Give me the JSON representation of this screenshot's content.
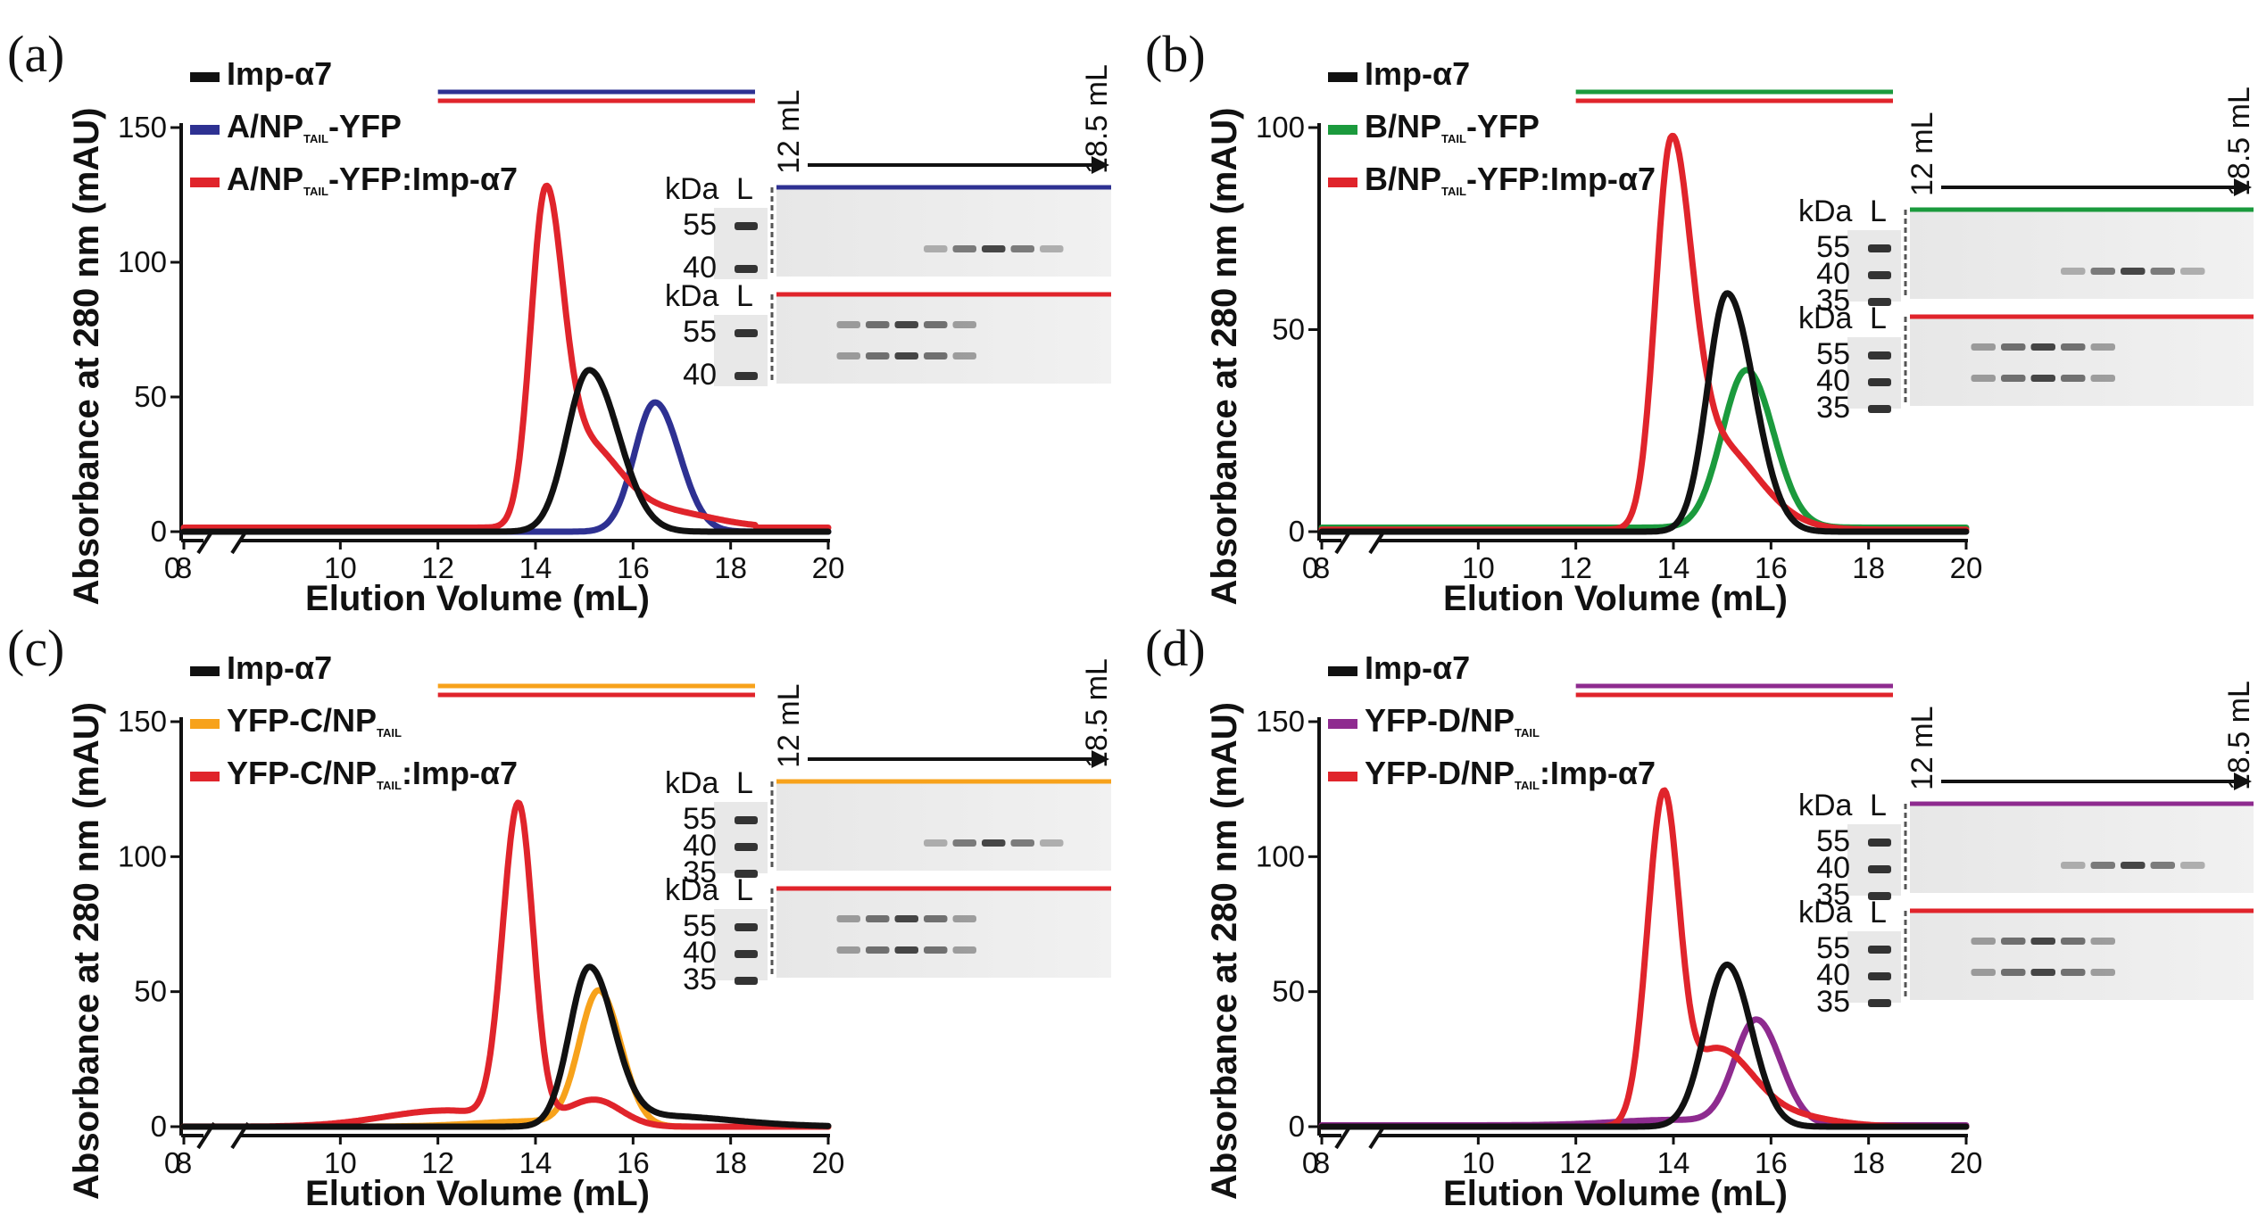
{
  "colors": {
    "imp": "#111111",
    "red": "#e0242b",
    "blue": "#2e3192",
    "green": "#1b9a3d",
    "orange": "#f7a21b",
    "purple": "#8e2b8f"
  },
  "gel_labels": {
    "kda": "kDa",
    "lane": "L",
    "start_vol": "12 mL",
    "end_vol": "18.5 mL"
  },
  "chart_data": [
    {
      "panel": "(a)",
      "type": "line",
      "xlabel": "Elution Volume (mL)",
      "ylabel": "Absorbance at 280 nm (mAU)",
      "xlim": [
        0,
        20
      ],
      "x_axis_break": [
        0,
        8
      ],
      "ylim": [
        0,
        150
      ],
      "x_ticks": [
        "0",
        "8",
        "10",
        "12",
        "14",
        "16",
        "18",
        "20"
      ],
      "y_ticks": [
        "0",
        "50",
        "100",
        "150"
      ],
      "fraction_range_ml": [
        12,
        18.5
      ],
      "legend": [
        {
          "label": "Imp-α7",
          "color_key": "imp"
        },
        {
          "label_pre": "A/NP",
          "label_sub": "TAIL",
          "label_post": "-YFP",
          "color_key": "blue"
        },
        {
          "label_pre": "A/NP",
          "label_sub": "TAIL",
          "label_post": "-YFP:Imp-α7",
          "color_key": "red"
        }
      ],
      "series": [
        {
          "name": "Imp-α7",
          "color_key": "imp",
          "peaks": [
            {
              "x": 15.1,
              "h": 60,
              "sl": 0.45,
              "sr": 0.6
            }
          ],
          "baseline": 0
        },
        {
          "name": "A/NP-TAIL-YFP",
          "color_key": "blue",
          "peaks": [
            {
              "x": 16.45,
              "h": 48,
              "sl": 0.42,
              "sr": 0.5
            }
          ],
          "baseline": 0
        },
        {
          "name": "A/NP-TAIL-YFP:Imp-α7",
          "color_key": "red",
          "peaks": [
            {
              "x": 14.2,
              "h": 118,
              "sl": 0.3,
              "sr": 0.35
            },
            {
              "x": 15.0,
              "h": 30,
              "sl": 0.5,
              "sr": 0.7
            },
            {
              "x": 16.6,
              "h": 6,
              "sl": 0.9,
              "sr": 1.0
            }
          ],
          "baseline": 1.5
        }
      ],
      "gels": [
        {
          "color_key": "blue",
          "markers": [
            "55",
            "40"
          ]
        },
        {
          "color_key": "red",
          "markers": [
            "55",
            "40"
          ]
        }
      ]
    },
    {
      "panel": "(b)",
      "type": "line",
      "xlabel": "Elution Volume (mL)",
      "ylabel": "Absorbance at 280 nm (mAU)",
      "xlim": [
        0,
        20
      ],
      "x_axis_break": [
        0,
        8
      ],
      "ylim": [
        0,
        100
      ],
      "x_ticks": [
        "0",
        "8",
        "10",
        "12",
        "14",
        "16",
        "18",
        "20"
      ],
      "y_ticks": [
        "0",
        "50",
        "100"
      ],
      "fraction_range_ml": [
        12,
        18.5
      ],
      "legend": [
        {
          "label": "Imp-α7",
          "color_key": "imp"
        },
        {
          "label_pre": "B/NP",
          "label_sub": "TAIL",
          "label_post": "-YFP",
          "color_key": "green"
        },
        {
          "label_pre": "B/NP",
          "label_sub": "TAIL",
          "label_post": "-YFP:Imp-α7",
          "color_key": "red"
        }
      ],
      "series": [
        {
          "name": "Imp-α7",
          "color_key": "imp",
          "peaks": [
            {
              "x": 15.1,
              "h": 59,
              "sl": 0.4,
              "sr": 0.55
            }
          ],
          "baseline": 0
        },
        {
          "name": "B/NP-TAIL-YFP",
          "color_key": "green",
          "peaks": [
            {
              "x": 15.5,
              "h": 39,
              "sl": 0.5,
              "sr": 0.55
            }
          ],
          "baseline": 1
        },
        {
          "name": "B/NP-TAIL-YFP:Imp-α7",
          "color_key": "red",
          "peaks": [
            {
              "x": 13.95,
              "h": 92,
              "sl": 0.32,
              "sr": 0.4
            },
            {
              "x": 14.8,
              "h": 22,
              "sl": 0.5,
              "sr": 0.9
            }
          ],
          "baseline": 0.5
        }
      ],
      "gels": [
        {
          "color_key": "green",
          "markers": [
            "55",
            "40",
            "35"
          ]
        },
        {
          "color_key": "red",
          "markers": [
            "55",
            "40",
            "35"
          ]
        }
      ]
    },
    {
      "panel": "(c)",
      "type": "line",
      "xlabel": "Elution Volume (mL)",
      "ylabel": "Absorbance at 280 nm (mAU)",
      "xlim": [
        0,
        20
      ],
      "x_axis_break": [
        0,
        8
      ],
      "ylim": [
        0,
        150
      ],
      "x_ticks": [
        "0",
        "8",
        "10",
        "12",
        "14",
        "16",
        "18",
        "20"
      ],
      "y_ticks": [
        "0",
        "50",
        "100",
        "150"
      ],
      "fraction_range_ml": [
        12,
        18.5
      ],
      "legend": [
        {
          "label": "Imp-α7",
          "color_key": "imp"
        },
        {
          "label_pre": "YFP-C/NP",
          "label_sub": "TAIL",
          "label_post": "",
          "color_key": "orange"
        },
        {
          "label_pre": "YFP-C/NP",
          "label_sub": "TAIL",
          "label_post": ":Imp-α7",
          "color_key": "red"
        }
      ],
      "series": [
        {
          "name": "Imp-α7",
          "color_key": "imp",
          "peaks": [
            {
              "x": 15.1,
              "h": 58,
              "sl": 0.4,
              "sr": 0.5
            },
            {
              "x": 16.5,
              "h": 4,
              "sl": 0.9,
              "sr": 1.5
            }
          ],
          "baseline": 0
        },
        {
          "name": "YFP-C/NP-TAIL",
          "color_key": "orange",
          "peaks": [
            {
              "x": 15.3,
              "h": 50,
              "sl": 0.4,
              "sr": 0.45
            },
            {
              "x": 14.0,
              "h": 2,
              "sl": 1.2,
              "sr": 0.8
            }
          ],
          "baseline": 0
        },
        {
          "name": "YFP-C/NP-TAIL:Imp-α7",
          "color_key": "red",
          "peaks": [
            {
              "x": 13.65,
              "h": 118,
              "sl": 0.32,
              "sr": 0.3
            },
            {
              "x": 15.2,
              "h": 10,
              "sl": 0.6,
              "sr": 0.55
            },
            {
              "x": 12.2,
              "h": 6,
              "sl": 1.3,
              "sr": 0.9
            }
          ],
          "baseline": 0
        }
      ],
      "gels": [
        {
          "color_key": "orange",
          "markers": [
            "55",
            "40",
            "35"
          ]
        },
        {
          "color_key": "red",
          "markers": [
            "55",
            "40",
            "35"
          ]
        }
      ]
    },
    {
      "panel": "(d)",
      "type": "line",
      "xlabel": "Elution Volume (mL)",
      "ylabel": "Absorbance at 280 nm (mAU)",
      "xlim": [
        0,
        20
      ],
      "x_axis_break": [
        0,
        8
      ],
      "ylim": [
        0,
        150
      ],
      "x_ticks": [
        "0",
        "8",
        "10",
        "12",
        "14",
        "16",
        "18",
        "20"
      ],
      "y_ticks": [
        "0",
        "50",
        "100",
        "150"
      ],
      "fraction_range_ml": [
        12,
        18.5
      ],
      "legend": [
        {
          "label": "Imp-α7",
          "color_key": "imp"
        },
        {
          "label_pre": "YFP-D/NP",
          "label_sub": "TAIL",
          "label_post": "",
          "color_key": "purple"
        },
        {
          "label_pre": "YFP-D/NP",
          "label_sub": "TAIL",
          "label_post": ":Imp-α7",
          "color_key": "red"
        }
      ],
      "series": [
        {
          "name": "Imp-α7",
          "color_key": "imp",
          "peaks": [
            {
              "x": 15.1,
              "h": 60,
              "sl": 0.45,
              "sr": 0.5
            }
          ],
          "baseline": 0
        },
        {
          "name": "YFP-D/NP-TAIL",
          "color_key": "purple",
          "peaks": [
            {
              "x": 15.7,
              "h": 39,
              "sl": 0.45,
              "sr": 0.5
            },
            {
              "x": 14.0,
              "h": 2,
              "sl": 1.2,
              "sr": 0.8
            }
          ],
          "baseline": 0.5
        },
        {
          "name": "YFP-D/NP-TAIL:Imp-α7",
          "color_key": "red",
          "peaks": [
            {
              "x": 13.8,
              "h": 122,
              "sl": 0.33,
              "sr": 0.32
            },
            {
              "x": 14.9,
              "h": 28,
              "sl": 0.5,
              "sr": 0.7
            },
            {
              "x": 16.3,
              "h": 4,
              "sl": 0.8,
              "sr": 0.9
            }
          ],
          "baseline": 0
        }
      ],
      "gels": [
        {
          "color_key": "purple",
          "markers": [
            "55",
            "40",
            "35"
          ]
        },
        {
          "color_key": "red",
          "markers": [
            "55",
            "40",
            "35"
          ]
        }
      ]
    }
  ]
}
